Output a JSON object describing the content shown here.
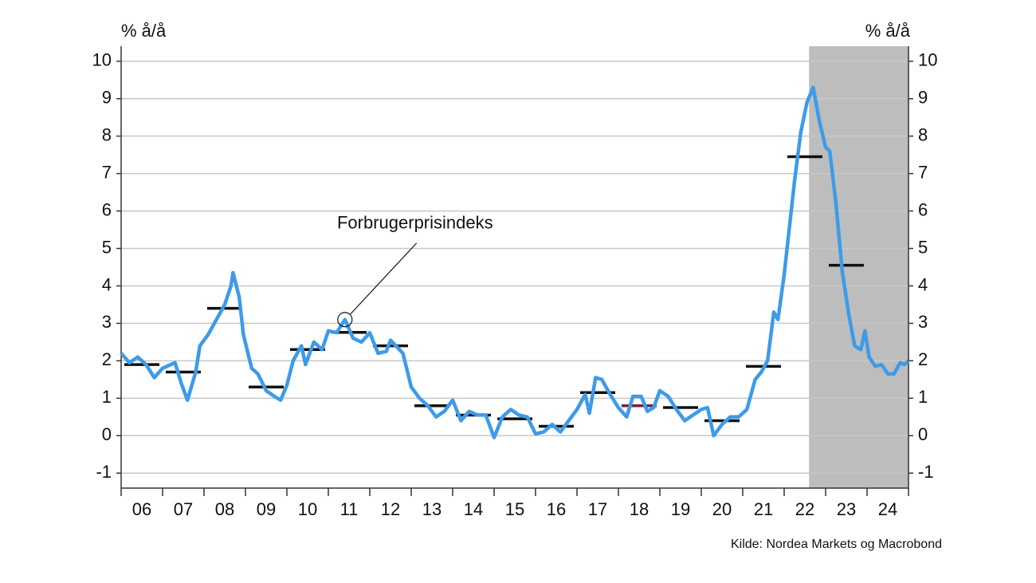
{
  "chart_data": {
    "type": "line",
    "ylabel": "% å/å",
    "y2label": "% å/å",
    "source": "Kilde: Nordea Markets og Macrobond",
    "annotation": {
      "text": "Forbrugerprisindeks",
      "x": 2011.4,
      "y": 3.1
    },
    "xlim": [
      2006,
      2025
    ],
    "xticks": [
      2006,
      2007,
      2008,
      2009,
      2010,
      2011,
      2012,
      2013,
      2014,
      2015,
      2016,
      2017,
      2018,
      2019,
      2020,
      2021,
      2022,
      2023,
      2024,
      2025
    ],
    "categories": [
      "06",
      "07",
      "08",
      "09",
      "10",
      "11",
      "12",
      "13",
      "14",
      "15",
      "16",
      "17",
      "18",
      "19",
      "20",
      "21",
      "22",
      "23",
      "24"
    ],
    "ylim": [
      -1.4,
      10.4
    ],
    "yticks": [
      -1,
      0,
      1,
      2,
      3,
      4,
      5,
      6,
      7,
      8,
      9,
      10
    ],
    "y2lim": [
      -1.4,
      10.4
    ],
    "y2ticks": [
      -1,
      0,
      1,
      2,
      3,
      4,
      5,
      6,
      7,
      8,
      9,
      10
    ],
    "grid": true,
    "shade_x": [
      2022.6,
      2025
    ],
    "shade_color": "#bdbdbd",
    "series": [
      {
        "name": "Forbrugerprisindeks",
        "color": "#3d9be9",
        "x": [
          2006.0,
          2006.2,
          2006.4,
          2006.6,
          2006.8,
          2007.0,
          2007.3,
          2007.45,
          2007.6,
          2007.8,
          2007.9,
          2008.1,
          2008.3,
          2008.5,
          2008.65,
          2008.7,
          2008.85,
          2008.95,
          2009.15,
          2009.3,
          2009.5,
          2009.7,
          2009.85,
          2010.0,
          2010.15,
          2010.35,
          2010.45,
          2010.65,
          2010.85,
          2011.0,
          2011.2,
          2011.4,
          2011.6,
          2011.8,
          2012.0,
          2012.2,
          2012.4,
          2012.5,
          2012.8,
          2013.0,
          2013.2,
          2013.4,
          2013.6,
          2013.8,
          2014.0,
          2014.2,
          2014.4,
          2014.6,
          2014.8,
          2015.0,
          2015.2,
          2015.4,
          2015.6,
          2015.8,
          2016.0,
          2016.2,
          2016.4,
          2016.6,
          2016.8,
          2017.0,
          2017.2,
          2017.3,
          2017.45,
          2017.6,
          2017.8,
          2018.0,
          2018.2,
          2018.35,
          2018.55,
          2018.7,
          2018.85,
          2019.0,
          2019.2,
          2019.4,
          2019.6,
          2019.8,
          2020.0,
          2020.15,
          2020.3,
          2020.5,
          2020.7,
          2020.9,
          2021.1,
          2021.3,
          2021.45,
          2021.6,
          2021.75,
          2021.85,
          2022.0,
          2022.1,
          2022.25,
          2022.4,
          2022.55,
          2022.7,
          2022.85,
          2023.0,
          2023.1,
          2023.25,
          2023.4,
          2023.55,
          2023.7,
          2023.85,
          2023.95,
          2024.05,
          2024.2,
          2024.35,
          2024.5,
          2024.65,
          2024.8,
          2024.9,
          2025.0
        ],
        "values": [
          2.2,
          1.95,
          2.1,
          1.9,
          1.55,
          1.8,
          1.95,
          1.4,
          0.95,
          1.7,
          2.4,
          2.7,
          3.1,
          3.5,
          4.0,
          4.35,
          3.7,
          2.7,
          1.8,
          1.65,
          1.2,
          1.05,
          0.95,
          1.35,
          2.0,
          2.4,
          1.9,
          2.5,
          2.3,
          2.8,
          2.75,
          3.1,
          2.6,
          2.5,
          2.75,
          2.2,
          2.25,
          2.55,
          2.2,
          1.3,
          1.0,
          0.8,
          0.5,
          0.65,
          0.95,
          0.4,
          0.65,
          0.55,
          0.55,
          -0.05,
          0.5,
          0.7,
          0.55,
          0.5,
          0.05,
          0.1,
          0.3,
          0.1,
          0.4,
          0.7,
          1.1,
          0.6,
          1.55,
          1.5,
          1.1,
          0.75,
          0.5,
          1.05,
          1.05,
          0.65,
          0.75,
          1.2,
          1.05,
          0.7,
          0.4,
          0.55,
          0.7,
          0.75,
          0.0,
          0.3,
          0.5,
          0.5,
          0.7,
          1.5,
          1.7,
          2.0,
          3.3,
          3.1,
          4.3,
          5.3,
          6.8,
          8.1,
          8.9,
          9.3,
          8.4,
          7.7,
          7.6,
          6.2,
          4.4,
          3.3,
          2.4,
          2.3,
          2.8,
          2.1,
          1.85,
          1.9,
          1.65,
          1.65,
          1.95,
          1.9,
          2.0
        ]
      }
    ],
    "annual_averages": {
      "values": [
        1.9,
        1.7,
        3.4,
        1.3,
        2.3,
        2.76,
        2.4,
        0.8,
        0.55,
        0.45,
        0.25,
        1.15,
        0.8,
        0.75,
        0.4,
        1.85,
        7.45,
        4.55,
        null
      ],
      "colors": [
        "#111111",
        "#111111",
        "#111111",
        "#111111",
        "#111111",
        "#111111",
        "#111111",
        "#111111",
        "#111111",
        "#111111",
        "#111111",
        "#111111",
        "#7a1f3d",
        "#111111",
        "#111111",
        "#111111",
        "#111111",
        "#111111",
        "#111111"
      ]
    }
  }
}
